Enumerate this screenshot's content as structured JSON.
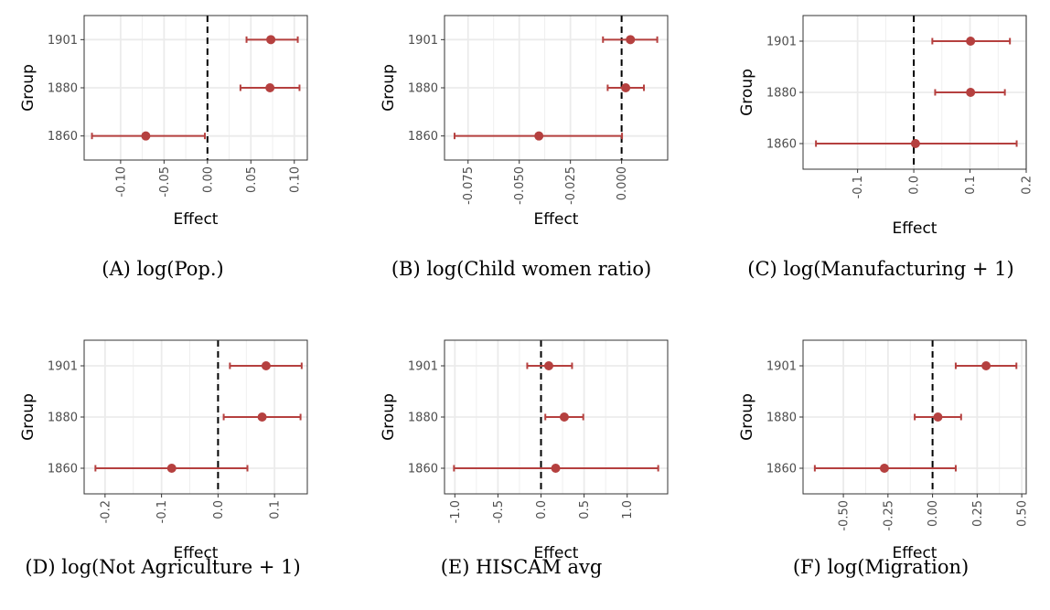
{
  "chart_data": [
    {
      "type": "scatter",
      "caption": "(A) log(Pop.)",
      "xlabel": "Effect",
      "ylabel": "Group",
      "xlim": [
        -0.142,
        0.115
      ],
      "xticks": [
        -0.1,
        -0.05,
        0.0,
        0.05,
        0.1
      ],
      "xtick_labels": [
        "-0.10",
        "-0.05",
        "0.00",
        "0.05",
        "0.10"
      ],
      "reference_line_x": 0,
      "grid": true,
      "points": [
        {
          "group": "1901",
          "estimate": 0.073,
          "ci_low": 0.045,
          "ci_high": 0.104
        },
        {
          "group": "1880",
          "estimate": 0.072,
          "ci_low": 0.038,
          "ci_high": 0.106
        },
        {
          "group": "1860",
          "estimate": -0.071,
          "ci_low": -0.133,
          "ci_high": -0.003
        }
      ]
    },
    {
      "type": "scatter",
      "caption": "(B) log(Child women ratio)",
      "xlabel": "Effect",
      "ylabel": "Group",
      "xlim": [
        -0.0865,
        0.0225
      ],
      "xticks": [
        -0.075,
        -0.05,
        -0.025,
        0.0
      ],
      "xtick_labels": [
        "-0.075",
        "-0.050",
        "-0.025",
        "0.000"
      ],
      "reference_line_x": 0,
      "grid": true,
      "points": [
        {
          "group": "1901",
          "estimate": 0.0043,
          "ci_low": -0.0091,
          "ci_high": 0.0174
        },
        {
          "group": "1880",
          "estimate": 0.002,
          "ci_low": -0.0068,
          "ci_high": 0.0109
        },
        {
          "group": "1860",
          "estimate": -0.0404,
          "ci_low": -0.0816,
          "ci_high": 0.0002
        }
      ]
    },
    {
      "type": "scatter",
      "caption": "(C) log(Manufacturing + 1)",
      "xlabel": "Effect",
      "ylabel": "Group",
      "xlim": [
        -0.197,
        0.2
      ],
      "xticks": [
        -0.1,
        0.0,
        0.1,
        0.2
      ],
      "xtick_labels": [
        "-0.1",
        "0.0",
        "0.1",
        "0.2"
      ],
      "reference_line_x": 0,
      "grid": true,
      "points": [
        {
          "group": "1901",
          "estimate": 0.101,
          "ci_low": 0.033,
          "ci_high": 0.171
        },
        {
          "group": "1880",
          "estimate": 0.101,
          "ci_low": 0.038,
          "ci_high": 0.162
        },
        {
          "group": "1860",
          "estimate": 0.003,
          "ci_low": -0.174,
          "ci_high": 0.183
        }
      ]
    },
    {
      "type": "scatter",
      "caption": "(D) log(Not Agriculture + 1)",
      "xlabel": "Effect",
      "ylabel": "Group",
      "xlim": [
        -0.237,
        0.158
      ],
      "xticks": [
        -0.2,
        -0.1,
        0.0,
        0.1
      ],
      "xtick_labels": [
        "-0.2",
        "-0.1",
        "0.0",
        "0.1"
      ],
      "reference_line_x": 0,
      "grid": true,
      "points": [
        {
          "group": "1901",
          "estimate": 0.085,
          "ci_low": 0.021,
          "ci_high": 0.148
        },
        {
          "group": "1880",
          "estimate": 0.078,
          "ci_low": 0.01,
          "ci_high": 0.146
        },
        {
          "group": "1860",
          "estimate": -0.082,
          "ci_low": -0.217,
          "ci_high": 0.052
        }
      ]
    },
    {
      "type": "scatter",
      "caption": "(E) HISCAM avg",
      "xlabel": "Effect",
      "ylabel": "Group",
      "xlim": [
        -1.12,
        1.47
      ],
      "xticks": [
        -1.0,
        -0.5,
        0.0,
        0.5,
        1.0
      ],
      "xtick_labels": [
        "-1.0",
        "-0.5",
        "0.0",
        "0.5",
        "1.0"
      ],
      "reference_line_x": 0,
      "grid": true,
      "points": [
        {
          "group": "1901",
          "estimate": 0.09,
          "ci_low": -0.16,
          "ci_high": 0.36
        },
        {
          "group": "1880",
          "estimate": 0.27,
          "ci_low": 0.05,
          "ci_high": 0.49
        },
        {
          "group": "1860",
          "estimate": 0.17,
          "ci_low": -1.01,
          "ci_high": 1.36
        }
      ]
    },
    {
      "type": "scatter",
      "caption": "(F) log(Migration)",
      "xlabel": "Effect",
      "ylabel": "Group",
      "xlim": [
        -0.726,
        0.525
      ],
      "xticks": [
        -0.5,
        -0.25,
        0.0,
        0.25,
        0.5
      ],
      "xtick_labels": [
        "-0.50",
        "-0.25",
        "0.00",
        "0.25",
        "0.50"
      ],
      "reference_line_x": 0,
      "grid": true,
      "points": [
        {
          "group": "1901",
          "estimate": 0.3,
          "ci_low": 0.13,
          "ci_high": 0.47
        },
        {
          "group": "1880",
          "estimate": 0.03,
          "ci_low": -0.1,
          "ci_high": 0.16
        },
        {
          "group": "1860",
          "estimate": -0.27,
          "ci_low": -0.66,
          "ci_high": 0.13
        }
      ]
    }
  ],
  "style": {
    "point_color": "#b5403f",
    "reference_line_color": "#000000",
    "grid_color": "#ebebeb",
    "frame_color": "#333333"
  }
}
